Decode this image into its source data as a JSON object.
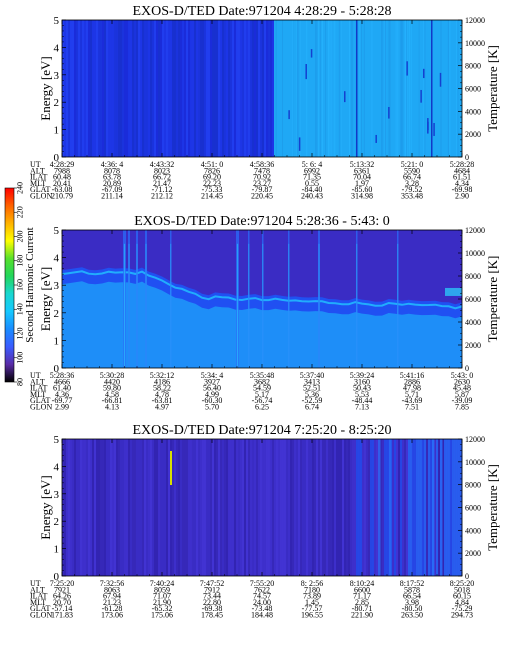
{
  "chart_data": [
    {
      "type": "heatmap",
      "title": "EXOS-D/TED   Date:971204   4:28:29 - 5:28:28",
      "ylabel": "Energy [eV]",
      "y2label": "Temperature [K]",
      "ylim": [
        0,
        5
      ],
      "y2lim": [
        0,
        12000
      ],
      "yticks": [
        "0",
        "1",
        "2",
        "3",
        "4",
        "5"
      ],
      "y2ticks": [
        "0",
        "2000",
        "4000",
        "6000",
        "8000",
        "10000",
        "12000"
      ],
      "row_labels": [
        "UT",
        "ALT",
        "ILAT",
        "MLT",
        "GLAT",
        "GLON"
      ],
      "columns": [
        [
          "4:28:29",
          "7988",
          "60.48",
          "20.41",
          "-63.08",
          "210.79"
        ],
        [
          "4:36: 4",
          "8078",
          "63.78",
          "20.89",
          "-67.09",
          "211.14"
        ],
        [
          "4:43:32",
          "8023",
          "66.72",
          "21.47",
          "-71.12",
          "212.12"
        ],
        [
          "4:51: 0",
          "7826",
          "69.20",
          "22.23",
          "-75.33",
          "214.45"
        ],
        [
          "4:58:36",
          "7478",
          "70.92",
          "23.27",
          "-79.87",
          "220.45"
        ],
        [
          "5: 6: 4",
          "6992",
          "71.35",
          "0.55",
          "-84.40",
          "240.43"
        ],
        [
          "5:13:32",
          "6361",
          "70.04",
          "1.97",
          "-85.60",
          "314.98"
        ],
        [
          "5:21: 0",
          "5590",
          "66.74",
          "3.28",
          "-79.52",
          "353.48"
        ],
        [
          "5:28:28",
          "4684",
          "61.51",
          "4.34",
          "-69.98",
          "2.90"
        ]
      ]
    },
    {
      "type": "heatmap",
      "title": "EXOS-D/TED   Date:971204   5:28:36 - 5:43: 0",
      "ylabel": "Energy [eV]",
      "y2label": "Temperature [K]",
      "ylim": [
        0,
        5
      ],
      "y2lim": [
        0,
        12000
      ],
      "yticks": [
        "0",
        "1",
        "2",
        "3",
        "4",
        "5"
      ],
      "y2ticks": [
        "0",
        "2000",
        "4000",
        "6000",
        "8000",
        "10000",
        "12000"
      ],
      "row_labels": [
        "UT",
        "ALT",
        "ILAT",
        "MLT",
        "GLAT",
        "GLON"
      ],
      "columns": [
        [
          "5:28:36",
          "4666",
          "61.40",
          "4.36",
          "-69.77",
          "2.99"
        ],
        [
          "5:30:28",
          "4420",
          "59.80",
          "4.58",
          "-66.81",
          "4.13"
        ],
        [
          "5:32:12",
          "4186",
          "58.22",
          "4.78",
          "-63.81",
          "4.97"
        ],
        [
          "5:34: 4",
          "3927",
          "56.40",
          "4.99",
          "-60.30",
          "5.70"
        ],
        [
          "5:35:48",
          "3682",
          "54.59",
          "5.17",
          "-56.74",
          "6.25"
        ],
        [
          "5:37:40",
          "3413",
          "52.51",
          "5.36",
          "-52.59",
          "6.74"
        ],
        [
          "5:39:24",
          "3160",
          "50.43",
          "5.53",
          "-48.44",
          "7.13"
        ],
        [
          "5:41:16",
          "2886",
          "47.98",
          "5.71",
          "-43.69",
          "7.51"
        ],
        [
          "5:43: 0",
          "2630",
          "45.48",
          "5.87",
          "-39.09",
          "7.85"
        ]
      ]
    },
    {
      "type": "heatmap",
      "title": "EXOS-D/TED   Date:971204   7:25:20 - 8:25:20",
      "ylabel": "Energy [eV]",
      "y2label": "Temperature [K]",
      "ylim": [
        0,
        5
      ],
      "y2lim": [
        0,
        12000
      ],
      "yticks": [
        "0",
        "1",
        "2",
        "3",
        "4",
        "5"
      ],
      "y2ticks": [
        "0",
        "2000",
        "4000",
        "6000",
        "8000",
        "10000",
        "12000"
      ],
      "row_labels": [
        "UT",
        "ALT",
        "ILAT",
        "MLT",
        "GLAT",
        "GLON"
      ],
      "columns": [
        [
          "7:25:20",
          "7921",
          "64.26",
          "20.70",
          "-57.14",
          "171.83"
        ],
        [
          "7:32:56",
          "8063",
          "67.94",
          "21.23",
          "-61.28",
          "173.06"
        ],
        [
          "7:40:24",
          "8059",
          "71.07",
          "21.90",
          "-65.32",
          "175.06"
        ],
        [
          "7:47:52",
          "7912",
          "73.44",
          "22.80",
          "-69.38",
          "178.45"
        ],
        [
          "7:55:20",
          "7622",
          "74.57",
          "24.00",
          "-73.48",
          "184.48"
        ],
        [
          "8: 2:56",
          "7180",
          "73.89",
          "1.45",
          "-77.57",
          "196.55"
        ],
        [
          "8:10:24",
          "6600",
          "71.17",
          "2.85",
          "-80.71",
          "221.90"
        ],
        [
          "8:17:52",
          "5878",
          "66.54",
          "3.98",
          "-80.50",
          "263.50"
        ],
        [
          "8:25:20",
          "5018",
          "60.15",
          "4.84",
          "-75.29",
          "294.73"
        ]
      ]
    }
  ],
  "colorbar": {
    "label": "Second Harmonic Current",
    "ticks": [
      "80",
      "100",
      "120",
      "140",
      "160",
      "180",
      "200",
      "220",
      "240"
    ],
    "colors": [
      "#000000",
      "#5a2ca8",
      "#3a5cff",
      "#1a8cff",
      "#16c8ff",
      "#19d7d0",
      "#22d65c",
      "#56e02c",
      "#ffff00",
      "#ffb300",
      "#ff6200",
      "#ff0000"
    ]
  }
}
